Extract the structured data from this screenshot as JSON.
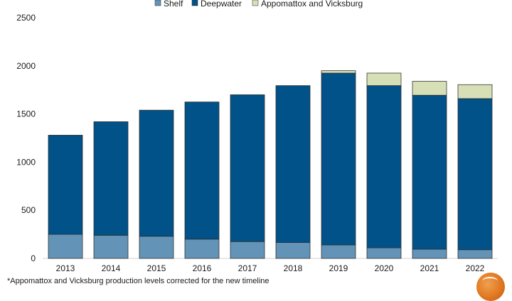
{
  "chart_data": {
    "type": "bar",
    "stacked": true,
    "categories": [
      "2013",
      "2014",
      "2015",
      "2016",
      "2017",
      "2018",
      "2019",
      "2020",
      "2021",
      "2022"
    ],
    "series": [
      {
        "name": "Shelf",
        "color": "#6394b8",
        "values": [
          250,
          240,
          230,
          200,
          175,
          165,
          140,
          110,
          95,
          90
        ]
      },
      {
        "name": "Deepwater",
        "color": "#005288",
        "values": [
          1030,
          1180,
          1310,
          1425,
          1525,
          1630,
          1785,
          1685,
          1600,
          1570
        ]
      },
      {
        "name": "Appomattox and Vicksburg",
        "color": "#d6dfb5",
        "values": [
          0,
          0,
          0,
          0,
          0,
          0,
          25,
          130,
          145,
          145
        ]
      }
    ],
    "ylim": [
      0,
      2500
    ],
    "yticks": [
      "0",
      "500",
      "1000",
      "1500",
      "2000",
      "2500"
    ],
    "grid": false,
    "legend_position": "top"
  },
  "footnote": "*Appomattox and Vicksburg production levels corrected for the new timeline",
  "logo_icon": "orange-globe-logo"
}
